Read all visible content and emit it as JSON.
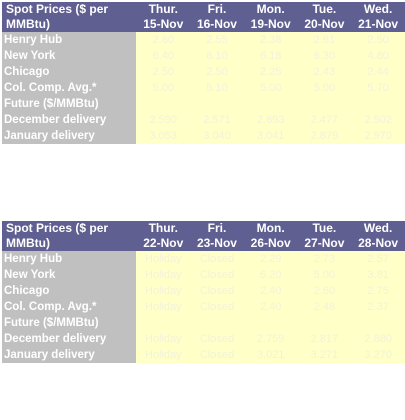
{
  "tables": [
    {
      "header_label": [
        "Spot Prices ($ per",
        "MMBtu)"
      ],
      "columns": [
        {
          "day": "Thur.",
          "date": "15-Nov"
        },
        {
          "day": "Fri.",
          "date": "16-Nov"
        },
        {
          "day": "Mon.",
          "date": "19-Nov"
        },
        {
          "day": "Tue.",
          "date": "20-Nov"
        },
        {
          "day": "Wed.",
          "date": "21-Nov"
        }
      ],
      "rows": [
        {
          "label": "Henry Hub",
          "values": [
            "2.60",
            "2.55",
            "2.38",
            "2.61",
            "2.50"
          ]
        },
        {
          "label": "New York",
          "values": [
            "6.40",
            "6.10",
            "6.18",
            "6.30",
            "4.80"
          ]
        },
        {
          "label": "Chicago",
          "values": [
            "2.50",
            "2.50",
            "2.25",
            "2.43",
            "2.44"
          ]
        },
        {
          "label": "Col. Comp. Avg.*",
          "values": [
            "5.00",
            "5.10",
            "5.00",
            "5.00",
            "5.70"
          ]
        },
        {
          "label": "Future ($/MMBtu)",
          "values": [
            "",
            "",
            "",
            "",
            ""
          ]
        },
        {
          "label": "December delivery",
          "values": [
            "2.590",
            "2.571",
            "2.693",
            "2.477",
            "2.502"
          ]
        },
        {
          "label": "January delivery",
          "values": [
            "3.053",
            "3.040",
            "3.041",
            "2.879",
            "2.970"
          ]
        }
      ]
    },
    {
      "header_label": [
        "Spot Prices ($ per",
        "MMBtu)"
      ],
      "columns": [
        {
          "day": "Thur.",
          "date": "22-Nov"
        },
        {
          "day": "Fri.",
          "date": "23-Nov"
        },
        {
          "day": "Mon.",
          "date": "26-Nov"
        },
        {
          "day": "Tue.",
          "date": "27-Nov"
        },
        {
          "day": "Wed.",
          "date": "28-Nov"
        }
      ],
      "rows": [
        {
          "label": "Henry Hub",
          "values": [
            "Holiday",
            "Closed",
            "2.29",
            "2.73",
            "2.57"
          ]
        },
        {
          "label": "New York",
          "values": [
            "Holiday",
            "Closed",
            "6.20",
            "5.00",
            "3.81"
          ]
        },
        {
          "label": "Chicago",
          "values": [
            "Holiday",
            "Closed",
            "2.40",
            "2.60",
            "2.75"
          ]
        },
        {
          "label": "Col. Comp. Avg.*",
          "values": [
            "Holiday",
            "Closed",
            "2.40",
            "2.48",
            "2.37"
          ]
        },
        {
          "label": "Future ($/MMBtu)",
          "values": [
            "",
            "",
            "",
            "",
            ""
          ]
        },
        {
          "label": "December delivery",
          "values": [
            "Holiday",
            "Closed",
            "2.759",
            "2.817",
            "2.880"
          ]
        },
        {
          "label": "January delivery",
          "values": [
            "Holiday",
            "Closed",
            "3.021",
            "3.271",
            "3.270"
          ]
        }
      ]
    }
  ]
}
